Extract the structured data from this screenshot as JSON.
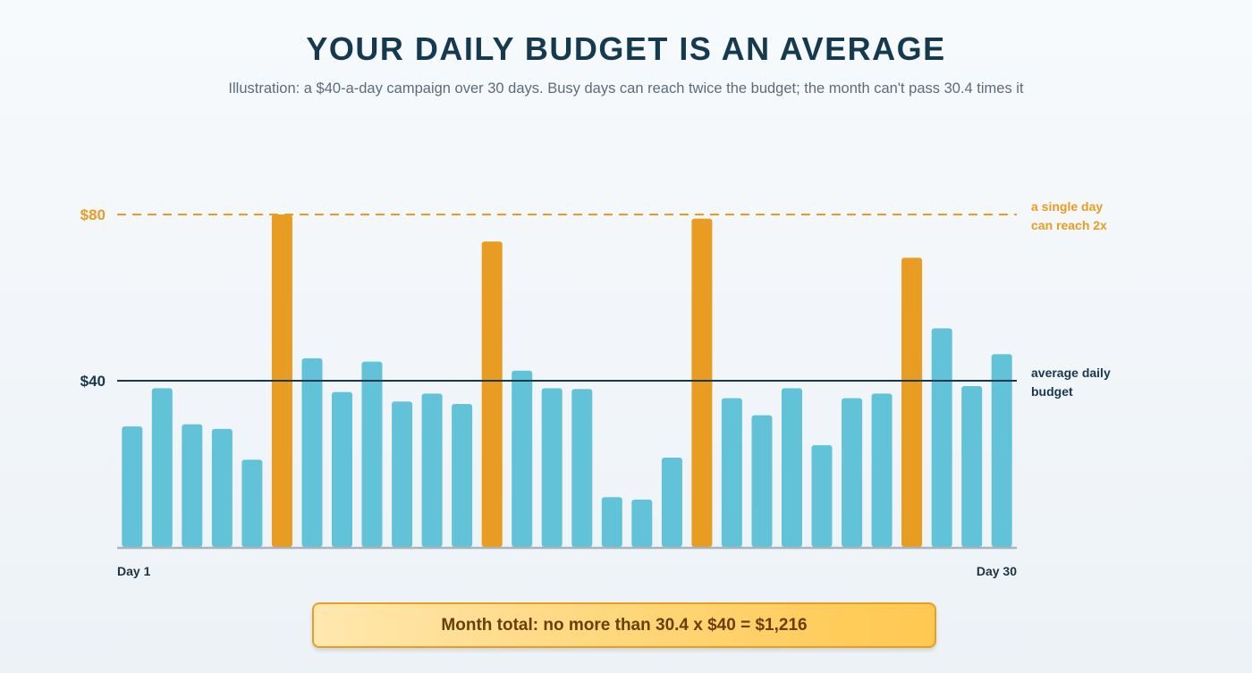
{
  "header": {
    "title": "YOUR DAILY BUDGET IS AN AVERAGE",
    "subtitle": "Illustration: a $40-a-day campaign over 30 days. Busy days can reach twice the budget; the month can't pass 30.4 times it"
  },
  "footer": {
    "total_label": "Month total: no more than 30.4 x $40 = $1,216"
  },
  "colors": {
    "normal_bar": "#62c3d8",
    "peak_bar": "#e89c21",
    "average_line": "#17384d",
    "cap_line": "#e89c21",
    "axis": "#aab4bc"
  },
  "chart_data": {
    "type": "bar",
    "x_label_first": "Day 1",
    "x_label_last": "Day 30",
    "ylim": [
      0,
      80
    ],
    "y_ticks": [
      {
        "value": 80,
        "label": "$80"
      },
      {
        "value": 40,
        "label": "$40"
      }
    ],
    "reference_lines": [
      {
        "name": "cap",
        "value": 80,
        "style": "dashed",
        "label_lines": [
          "a single day",
          "can reach 2x"
        ]
      },
      {
        "name": "average",
        "value": 40,
        "style": "solid",
        "label_lines": [
          "average daily",
          "budget"
        ]
      }
    ],
    "values": [
      29,
      38.2,
      29.5,
      28.4,
      21,
      80,
      45.4,
      37.3,
      44.6,
      35,
      36.9,
      34.4,
      73.5,
      42.4,
      38.2,
      38,
      12,
      11.4,
      21.5,
      79,
      35.8,
      31.7,
      38.2,
      24.5,
      35.8,
      36.9,
      69.6,
      52.6,
      38.7,
      46.4
    ],
    "highlighted_days": [
      6,
      13,
      20,
      27
    ]
  }
}
